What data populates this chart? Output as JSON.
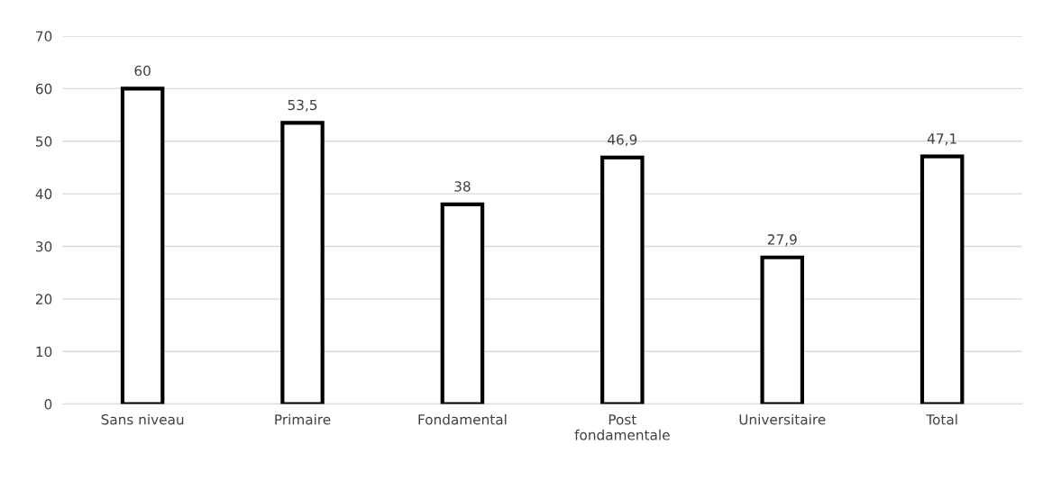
{
  "chart_data": {
    "type": "bar",
    "categories": [
      "Sans niveau",
      "Primaire",
      "Fondamental",
      "Post fondamentale",
      "Universitaire",
      "Total"
    ],
    "values": [
      60,
      53.5,
      38,
      46.9,
      27.9,
      47.1
    ],
    "value_labels": [
      "60",
      "53,5",
      "38",
      "46,9",
      "27,9",
      "47,1"
    ],
    "color": "#ffffff",
    "ylim": [
      0,
      70
    ],
    "yticks": [
      0,
      10,
      20,
      30,
      40,
      50,
      60,
      70
    ],
    "grid": "y"
  }
}
